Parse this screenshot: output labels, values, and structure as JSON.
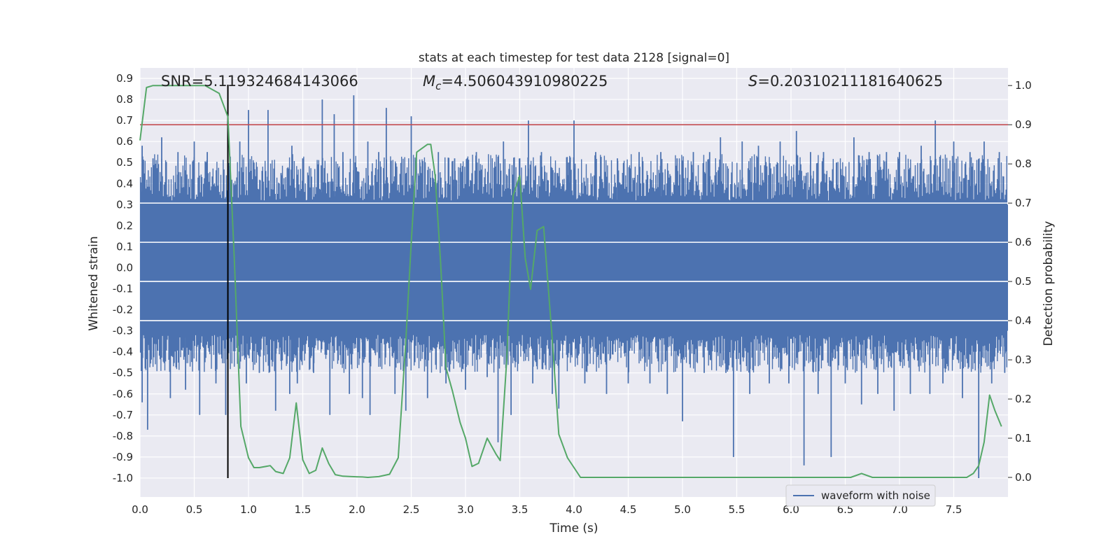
{
  "chart_data": {
    "type": "line",
    "title": "stats at each timestep for test data 2128 [signal=0]",
    "xlabel": "Time (s)",
    "ylabel": "Whitened strain",
    "y2label": "Detection probability",
    "xlim": [
      0.0,
      8.0
    ],
    "ylim": [
      -1.09,
      0.95
    ],
    "y2lim": [
      -0.05,
      1.045
    ],
    "x_ticks": [
      "0.0",
      "0.5",
      "1.0",
      "1.5",
      "2.0",
      "2.5",
      "3.0",
      "3.5",
      "4.0",
      "4.5",
      "5.0",
      "5.5",
      "6.0",
      "6.5",
      "7.0",
      "7.5"
    ],
    "y_ticks": [
      "0.9",
      "0.8",
      "0.7",
      "0.6",
      "0.5",
      "0.4",
      "0.3",
      "0.2",
      "0.1",
      "0.0",
      "-0.1",
      "-0.2",
      "-0.3",
      "-0.4",
      "-0.5",
      "-0.6",
      "-0.7",
      "-0.8",
      "-0.9",
      "-1.0"
    ],
    "y2_ticks": [
      "1.0",
      "0.9",
      "0.8",
      "0.7",
      "0.6",
      "0.5",
      "0.4",
      "0.3",
      "0.2",
      "0.1",
      "0.0"
    ],
    "annotations": {
      "snr": "SNR=5.119324684143066",
      "mc_symbol": "M",
      "mc_sub": "c",
      "mc_value": "=4.506043910980225",
      "s_symbol": "S",
      "s_value": "=0.20310211181640625"
    },
    "legend": {
      "label": "waveform with noise",
      "location": "lower-right"
    },
    "threshold": {
      "axis": "y2",
      "value": 0.9,
      "color": "#c44e52"
    },
    "vertical_marker": {
      "x": 0.81,
      "y_from": -1.0,
      "y_to": 0.87,
      "color": "#000000"
    },
    "waveform": {
      "name": "waveform with noise",
      "color": "#4c72b0",
      "band_low": -0.3,
      "band_high": 0.3,
      "extremes": [
        {
          "x": 0.02,
          "y": 0.58
        },
        {
          "x": 0.02,
          "y": -0.64
        },
        {
          "x": 0.07,
          "y": -0.77
        },
        {
          "x": 0.12,
          "y": 0.52
        },
        {
          "x": 0.2,
          "y": 0.62
        },
        {
          "x": 0.28,
          "y": -0.62
        },
        {
          "x": 0.35,
          "y": 0.55
        },
        {
          "x": 0.42,
          "y": -0.58
        },
        {
          "x": 0.5,
          "y": 0.6
        },
        {
          "x": 0.55,
          "y": -0.7
        },
        {
          "x": 0.62,
          "y": 0.55
        },
        {
          "x": 0.7,
          "y": -0.55
        },
        {
          "x": 0.79,
          "y": -0.7
        },
        {
          "x": 0.84,
          "y": 0.4
        },
        {
          "x": 0.92,
          "y": 0.6
        },
        {
          "x": 0.98,
          "y": -0.55
        },
        {
          "x": 1.0,
          "y": 0.75
        },
        {
          "x": 1.05,
          "y": 0.5
        },
        {
          "x": 1.1,
          "y": -0.5
        },
        {
          "x": 1.18,
          "y": 0.75
        },
        {
          "x": 1.25,
          "y": -0.68
        },
        {
          "x": 1.3,
          "y": 0.45
        },
        {
          "x": 1.38,
          "y": -0.6
        },
        {
          "x": 1.4,
          "y": 0.58
        },
        {
          "x": 1.45,
          "y": -0.55
        },
        {
          "x": 1.5,
          "y": 0.52
        },
        {
          "x": 1.6,
          "y": -0.5
        },
        {
          "x": 1.68,
          "y": 0.8
        },
        {
          "x": 1.75,
          "y": -0.7
        },
        {
          "x": 1.79,
          "y": 0.73
        },
        {
          "x": 1.87,
          "y": 0.55
        },
        {
          "x": 1.93,
          "y": -0.6
        },
        {
          "x": 1.97,
          "y": 0.82
        },
        {
          "x": 2.05,
          "y": -0.62
        },
        {
          "x": 2.1,
          "y": 0.6
        },
        {
          "x": 2.12,
          "y": -0.7
        },
        {
          "x": 2.2,
          "y": 0.55
        },
        {
          "x": 2.27,
          "y": 0.76
        },
        {
          "x": 2.35,
          "y": -0.6
        },
        {
          "x": 2.45,
          "y": -0.68
        },
        {
          "x": 2.5,
          "y": 0.72
        },
        {
          "x": 2.58,
          "y": 0.5
        },
        {
          "x": 2.65,
          "y": -0.62
        },
        {
          "x": 2.75,
          "y": 0.55
        },
        {
          "x": 2.82,
          "y": -0.55
        },
        {
          "x": 2.9,
          "y": 0.52
        },
        {
          "x": 3.0,
          "y": -0.58
        },
        {
          "x": 3.1,
          "y": 0.55
        },
        {
          "x": 3.2,
          "y": -0.52
        },
        {
          "x": 3.3,
          "y": -0.83
        },
        {
          "x": 3.35,
          "y": 0.6
        },
        {
          "x": 3.42,
          "y": -0.7
        },
        {
          "x": 3.5,
          "y": 0.52
        },
        {
          "x": 3.58,
          "y": 0.7
        },
        {
          "x": 3.62,
          "y": -0.55
        },
        {
          "x": 3.7,
          "y": 0.55
        },
        {
          "x": 3.8,
          "y": -0.6
        },
        {
          "x": 3.86,
          "y": -0.67
        },
        {
          "x": 3.95,
          "y": 0.5
        },
        {
          "x": 4.0,
          "y": 0.7
        },
        {
          "x": 4.1,
          "y": -0.55
        },
        {
          "x": 4.2,
          "y": 0.55
        },
        {
          "x": 4.3,
          "y": -0.6
        },
        {
          "x": 4.4,
          "y": 0.52
        },
        {
          "x": 4.5,
          "y": -0.55
        },
        {
          "x": 4.6,
          "y": 0.55
        },
        {
          "x": 4.7,
          "y": -0.55
        },
        {
          "x": 4.8,
          "y": 0.55
        },
        {
          "x": 4.86,
          "y": -0.6
        },
        {
          "x": 4.95,
          "y": 0.52
        },
        {
          "x": 5.0,
          "y": -0.73
        },
        {
          "x": 5.1,
          "y": 0.55
        },
        {
          "x": 5.2,
          "y": -0.5
        },
        {
          "x": 5.25,
          "y": 0.55
        },
        {
          "x": 5.35,
          "y": 0.62
        },
        {
          "x": 5.4,
          "y": -0.5
        },
        {
          "x": 5.47,
          "y": -0.9
        },
        {
          "x": 5.55,
          "y": 0.6
        },
        {
          "x": 5.62,
          "y": -0.6
        },
        {
          "x": 5.7,
          "y": 0.58
        },
        {
          "x": 5.8,
          "y": -0.55
        },
        {
          "x": 5.9,
          "y": 0.6
        },
        {
          "x": 5.98,
          "y": -0.55
        },
        {
          "x": 6.05,
          "y": 0.65
        },
        {
          "x": 6.12,
          "y": -0.94
        },
        {
          "x": 6.18,
          "y": 0.55
        },
        {
          "x": 6.25,
          "y": -0.6
        },
        {
          "x": 6.3,
          "y": 0.55
        },
        {
          "x": 6.37,
          "y": -0.9
        },
        {
          "x": 6.42,
          "y": 0.5
        },
        {
          "x": 6.5,
          "y": -0.55
        },
        {
          "x": 6.58,
          "y": 0.62
        },
        {
          "x": 6.65,
          "y": -0.65
        },
        {
          "x": 6.72,
          "y": 0.55
        },
        {
          "x": 6.8,
          "y": -0.6
        },
        {
          "x": 6.88,
          "y": 0.55
        },
        {
          "x": 6.95,
          "y": -0.68
        },
        {
          "x": 7.0,
          "y": 0.55
        },
        {
          "x": 7.1,
          "y": -0.6
        },
        {
          "x": 7.2,
          "y": 0.58
        },
        {
          "x": 7.28,
          "y": -0.6
        },
        {
          "x": 7.33,
          "y": 0.7
        },
        {
          "x": 7.4,
          "y": -0.55
        },
        {
          "x": 7.5,
          "y": 0.6
        },
        {
          "x": 7.58,
          "y": -0.62
        },
        {
          "x": 7.65,
          "y": 0.55
        },
        {
          "x": 7.73,
          "y": -1.0
        },
        {
          "x": 7.78,
          "y": 0.6
        },
        {
          "x": 7.85,
          "y": -0.55
        },
        {
          "x": 7.92,
          "y": 0.55
        },
        {
          "x": 7.97,
          "y": -0.5
        }
      ]
    },
    "probability": {
      "name": "Detection probability",
      "color": "#55a868",
      "x": [
        0.0,
        0.06,
        0.12,
        0.25,
        0.45,
        0.6,
        0.73,
        0.81,
        0.87,
        0.93,
        1.0,
        1.05,
        1.1,
        1.2,
        1.25,
        1.32,
        1.38,
        1.44,
        1.5,
        1.56,
        1.62,
        1.68,
        1.74,
        1.8,
        1.87,
        1.95,
        2.05,
        2.1,
        2.2,
        2.3,
        2.38,
        2.45,
        2.5,
        2.55,
        2.6,
        2.65,
        2.68,
        2.72,
        2.77,
        2.82,
        2.88,
        2.95,
        3.0,
        3.06,
        3.12,
        3.2,
        3.28,
        3.32,
        3.38,
        3.44,
        3.5,
        3.55,
        3.6,
        3.66,
        3.72,
        3.8,
        3.86,
        3.94,
        4.06,
        4.2,
        4.4,
        4.6,
        4.8,
        4.95,
        5.05,
        5.2,
        5.4,
        5.5,
        5.6,
        5.8,
        6.0,
        6.2,
        6.4,
        6.55,
        6.65,
        6.75,
        6.85,
        6.95,
        7.05,
        7.2,
        7.3,
        7.45,
        7.55,
        7.62,
        7.68,
        7.73,
        7.78,
        7.83,
        7.88,
        7.94
      ],
      "y": [
        0.86,
        0.995,
        1.0,
        1.0,
        1.0,
        1.0,
        0.98,
        0.92,
        0.55,
        0.13,
        0.05,
        0.025,
        0.025,
        0.03,
        0.015,
        0.01,
        0.05,
        0.19,
        0.045,
        0.01,
        0.018,
        0.075,
        0.035,
        0.007,
        0.003,
        0.002,
        0.001,
        0.0,
        0.002,
        0.008,
        0.05,
        0.35,
        0.6,
        0.83,
        0.84,
        0.85,
        0.85,
        0.77,
        0.55,
        0.28,
        0.22,
        0.14,
        0.1,
        0.028,
        0.036,
        0.1,
        0.06,
        0.043,
        0.3,
        0.72,
        0.77,
        0.56,
        0.48,
        0.63,
        0.64,
        0.35,
        0.11,
        0.05,
        0.0,
        0.0,
        0.0,
        0.0,
        0.0,
        0.0,
        0.0,
        0.0,
        0.0,
        0.0,
        0.0,
        0.0,
        0.0,
        0.0,
        0.0,
        0.0,
        0.01,
        0.0,
        0.0,
        0.0,
        0.0,
        0.0,
        0.0,
        0.0,
        0.0,
        0.0,
        0.01,
        0.03,
        0.09,
        0.21,
        0.17,
        0.13
      ]
    }
  }
}
